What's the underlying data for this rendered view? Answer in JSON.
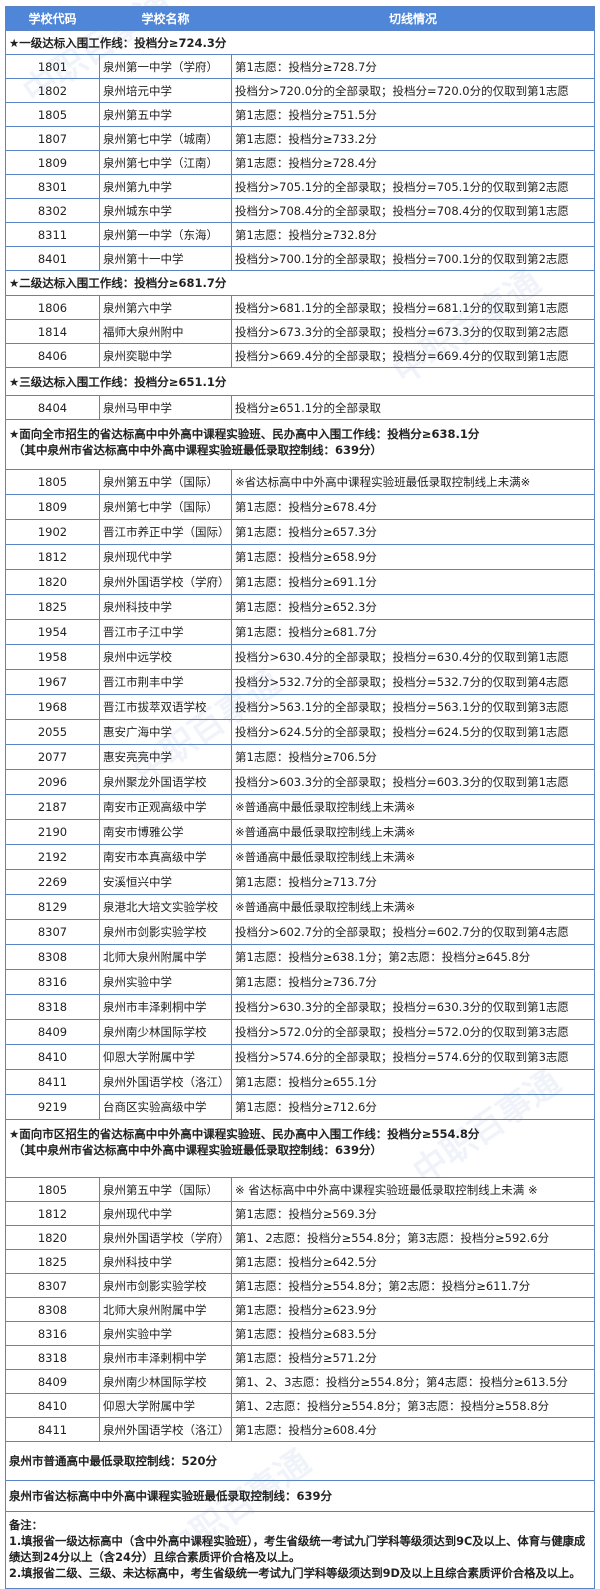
{
  "watermark": "中职百事通",
  "colors": {
    "header_bg": "#4f86d8",
    "border": "#5b84c4"
  },
  "headers": [
    "学校代码",
    "学校名称",
    "切线情况"
  ],
  "sections": [
    {
      "title": [
        "★一级达标入围工作线：投档分≥724.3分"
      ],
      "rows": [
        [
          "1801",
          "泉州第一中学（学府）",
          "第1志愿：投档分≥728.7分"
        ],
        [
          "1802",
          "泉州培元中学",
          "投档分>720.0分的全部录取；投档分=720.0分的仅取到第1志愿"
        ],
        [
          "1805",
          "泉州第五中学",
          "第1志愿：投档分≥751.5分"
        ],
        [
          "1807",
          "泉州第七中学（城南）",
          "第1志愿：投档分≥733.2分"
        ],
        [
          "1809",
          "泉州第七中学（江南）",
          "第1志愿：投档分≥728.4分"
        ],
        [
          "8301",
          "泉州第九中学",
          "投档分>705.1分的全部录取；投档分=705.1分的仅取到第2志愿"
        ],
        [
          "8302",
          "泉州城东中学",
          "投档分>708.4分的全部录取；投档分=708.4分的仅取到第1志愿"
        ],
        [
          "8311",
          "泉州第一中学（东海）",
          "第1志愿：投档分≥732.8分"
        ],
        [
          "8401",
          "泉州第十一中学",
          "投档分>700.1分的全部录取；投档分=700.1分的仅取到第2志愿"
        ]
      ]
    },
    {
      "title": [
        "★二级达标入围工作线：投档分≥681.7分"
      ],
      "rows": [
        [
          "1806",
          "泉州第六中学",
          "投档分>681.1分的全部录取；投档分=681.1分的仅取到第1志愿"
        ],
        [
          "1814",
          "福师大泉州附中",
          "投档分>673.3分的全部录取；投档分=673.3分的仅取到第2志愿"
        ],
        [
          "8406",
          "泉州奕聪中学",
          "投档分>669.4分的全部录取；投档分=669.4分的仅取到第1志愿"
        ]
      ]
    },
    {
      "title": [
        "★三级达标入围工作线：投档分≥651.1分"
      ],
      "rows": [
        [
          "8404",
          "泉州马甲中学",
          "投档分≥651.1分的全部录取"
        ]
      ]
    },
    {
      "title": [
        "★面向全市招生的省达标高中中外高中课程实验班、民办高中入围工作线：投档分≥638.1分",
        "（其中泉州市省达标高中中外高中课程实验班最低录取控制线：639分）"
      ],
      "rows": [
        [
          "1805",
          "泉州第五中学（国际）",
          "※省达标高中中外高中课程实验班最低录取控制线上未满※"
        ],
        [
          "1809",
          "泉州第七中学（国际）",
          "第1志愿：投档分≥678.4分"
        ],
        [
          "1902",
          "晋江市养正中学（国际）",
          "第1志愿：投档分≥657.3分"
        ],
        [
          "1812",
          "泉州现代中学",
          "第1志愿：投档分≥658.9分"
        ],
        [
          "1820",
          "泉州外国语学校（学府）",
          "第1志愿：投档分≥691.1分"
        ],
        [
          "1825",
          "泉州科技中学",
          "第1志愿：投档分≥652.3分"
        ],
        [
          "1954",
          "晋江市子江中学",
          "第1志愿：投档分≥681.7分"
        ],
        [
          "1958",
          "泉州中远学校",
          "投档分>630.4分的全部录取；投档分=630.4分的仅取到第1志愿"
        ],
        [
          "1967",
          "晋江市荆丰中学",
          "投档分>532.7分的全部录取；投档分=532.7分的仅取到第4志愿"
        ],
        [
          "1968",
          "晋江市拔萃双语学校",
          "投档分>563.1分的全部录取；投档分=563.1分的仅取到第3志愿"
        ],
        [
          "2055",
          "惠安广海中学",
          "投档分>624.5分的全部录取；投档分=624.5分的仅取到第1志愿"
        ],
        [
          "2077",
          "惠安亮亮中学",
          "第1志愿：投档分≥706.5分"
        ],
        [
          "2096",
          "泉州聚龙外国语学校",
          "投档分>603.3分的全部录取；投档分=603.3分的仅取到第1志愿"
        ],
        [
          "2187",
          "南安市正观高级中学",
          "※普通高中最低录取控制线上未满※"
        ],
        [
          "2190",
          "南安市博雅公学",
          "※普通高中最低录取控制线上未满※"
        ],
        [
          "2192",
          "南安市本真高级中学",
          "※普通高中最低录取控制线上未满※"
        ],
        [
          "2269",
          "安溪恒兴中学",
          "第1志愿：投档分≥713.7分"
        ],
        [
          "8129",
          "泉港北大培文实验学校",
          "※普通高中最低录取控制线上未满※"
        ],
        [
          "8307",
          "泉州市剑影实验学校",
          "投档分>602.7分的全部录取；投档分=602.7分的仅取到第4志愿"
        ],
        [
          "8308",
          "北师大泉州附属中学",
          "第1志愿：投档分≥638.1分；第2志愿：投档分≥645.8分"
        ],
        [
          "8316",
          "泉州实验中学",
          "第1志愿：投档分≥736.7分"
        ],
        [
          "8318",
          "泉州市丰泽剌桐中学",
          "投档分>630.3分的全部录取；投档分=630.3分的仅取到第1志愿"
        ],
        [
          "8409",
          "泉州南少林国际学校",
          "投档分>572.0分的全部录取；投档分=572.0分的仅取到第3志愿"
        ],
        [
          "8410",
          "仰恩大学附属中学",
          "投档分>574.6分的全部录取；投档分=574.6分的仅取到第3志愿"
        ],
        [
          "8411",
          "泉州外国语学校（洛江）",
          "第1志愿：投档分≥655.1分"
        ],
        [
          "9219",
          "台商区实验高级中学",
          "第1志愿：投档分≥712.6分"
        ]
      ]
    },
    {
      "title": [
        "★面向市区招生的省达标高中中外高中课程实验班、民办高中入围工作线：投档分≥554.8分",
        "（其中泉州市省达标高中中外高中课程实验班最低录取控制线：639分）"
      ],
      "rows": [
        [
          "1805",
          "泉州第五中学（国际）",
          "※ 省达标高中中外高中课程实验班最低录取控制线上未满 ※"
        ],
        [
          "1812",
          "泉州现代中学",
          "第1志愿：投档分≥569.3分"
        ],
        [
          "1820",
          "泉州外国语学校（学府）",
          "第1、2志愿：投档分≥554.8分；第3志愿：投档分≥592.6分"
        ],
        [
          "1825",
          "泉州科技中学",
          "第1志愿：投档分≥642.5分"
        ],
        [
          "8307",
          "泉州市剑影实验学校",
          "第1志愿：投档分≥554.8分；第2志愿：投档分≥611.7分"
        ],
        [
          "8308",
          "北师大泉州附属中学",
          "第1志愿：投档分≥623.9分"
        ],
        [
          "8316",
          "泉州实验中学",
          "第1志愿：投档分≥683.5分"
        ],
        [
          "8318",
          "泉州市丰泽剌桐中学",
          "第1志愿：投档分≥571.2分"
        ],
        [
          "8409",
          "泉州南少林国际学校",
          "第1、2、3志愿：投档分≥554.8分；第4志愿：投档分≥613.5分"
        ],
        [
          "8410",
          "仰恩大学附属中学",
          "第1、2志愿：投档分≥554.8分；第3志愿：投档分≥558.8分"
        ],
        [
          "8411",
          "泉州外国语学校（洛江）",
          "第1志愿：投档分≥608.4分"
        ]
      ]
    }
  ],
  "footer": {
    "general_line": "泉州市普通高中最低录取控制线：520分",
    "intl_line": "泉州市省达标高中中外高中课程实验班最低录取控制线：639分",
    "notes_title": "备注：",
    "notes": [
      "1.填报省一级达标高中（含中外高中课程实验班），考生省级统一考试九门学科等级须达到9C及以上、体育与健康成绩达到24分以上（含24分）且综合素质评价合格及以上。",
      "2.填报省二级、三级、未达标高中，考生省级统一考试九门学科等级须达到9D及以上且综合素质评价合格及以上。"
    ]
  }
}
